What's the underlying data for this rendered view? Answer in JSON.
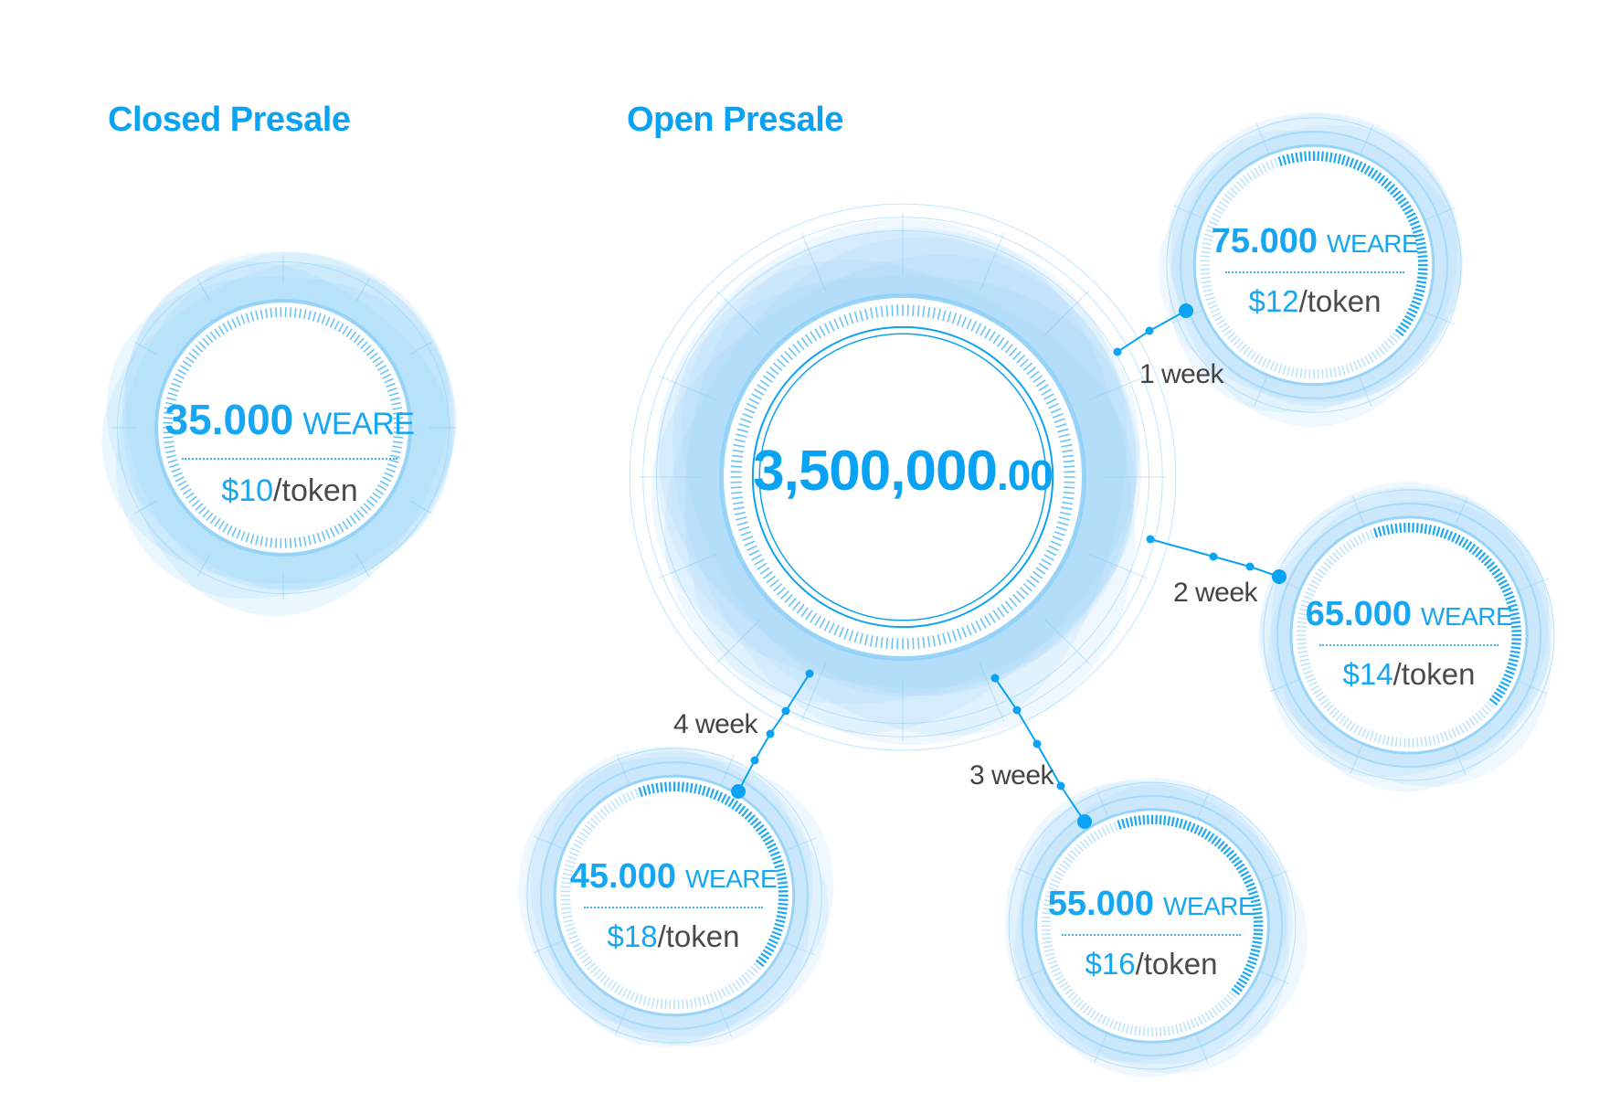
{
  "closed_presale": {
    "title": "Closed Presale",
    "amount": "35.000",
    "unit": "WEARE",
    "price": "$10",
    "per": "/token"
  },
  "open_presale": {
    "title": "Open Presale",
    "total": {
      "main": "3,500,000",
      "cents": ".00"
    },
    "stages": [
      {
        "week": "1 week",
        "amount": "75.000",
        "unit": "WEARE",
        "price": "$12",
        "per": "/token"
      },
      {
        "week": "2 week",
        "amount": "65.000",
        "unit": "WEARE",
        "price": "$14",
        "per": "/token"
      },
      {
        "week": "3 week",
        "amount": "55.000",
        "unit": "WEARE",
        "price": "$16",
        "per": "/token"
      },
      {
        "week": "4 week",
        "amount": "45.000",
        "unit": "WEARE",
        "price": "$18",
        "per": "/token"
      }
    ]
  },
  "colors": {
    "accent": "#0aa2f2",
    "glow": "#8fd0f7",
    "text_dark": "#444444"
  }
}
